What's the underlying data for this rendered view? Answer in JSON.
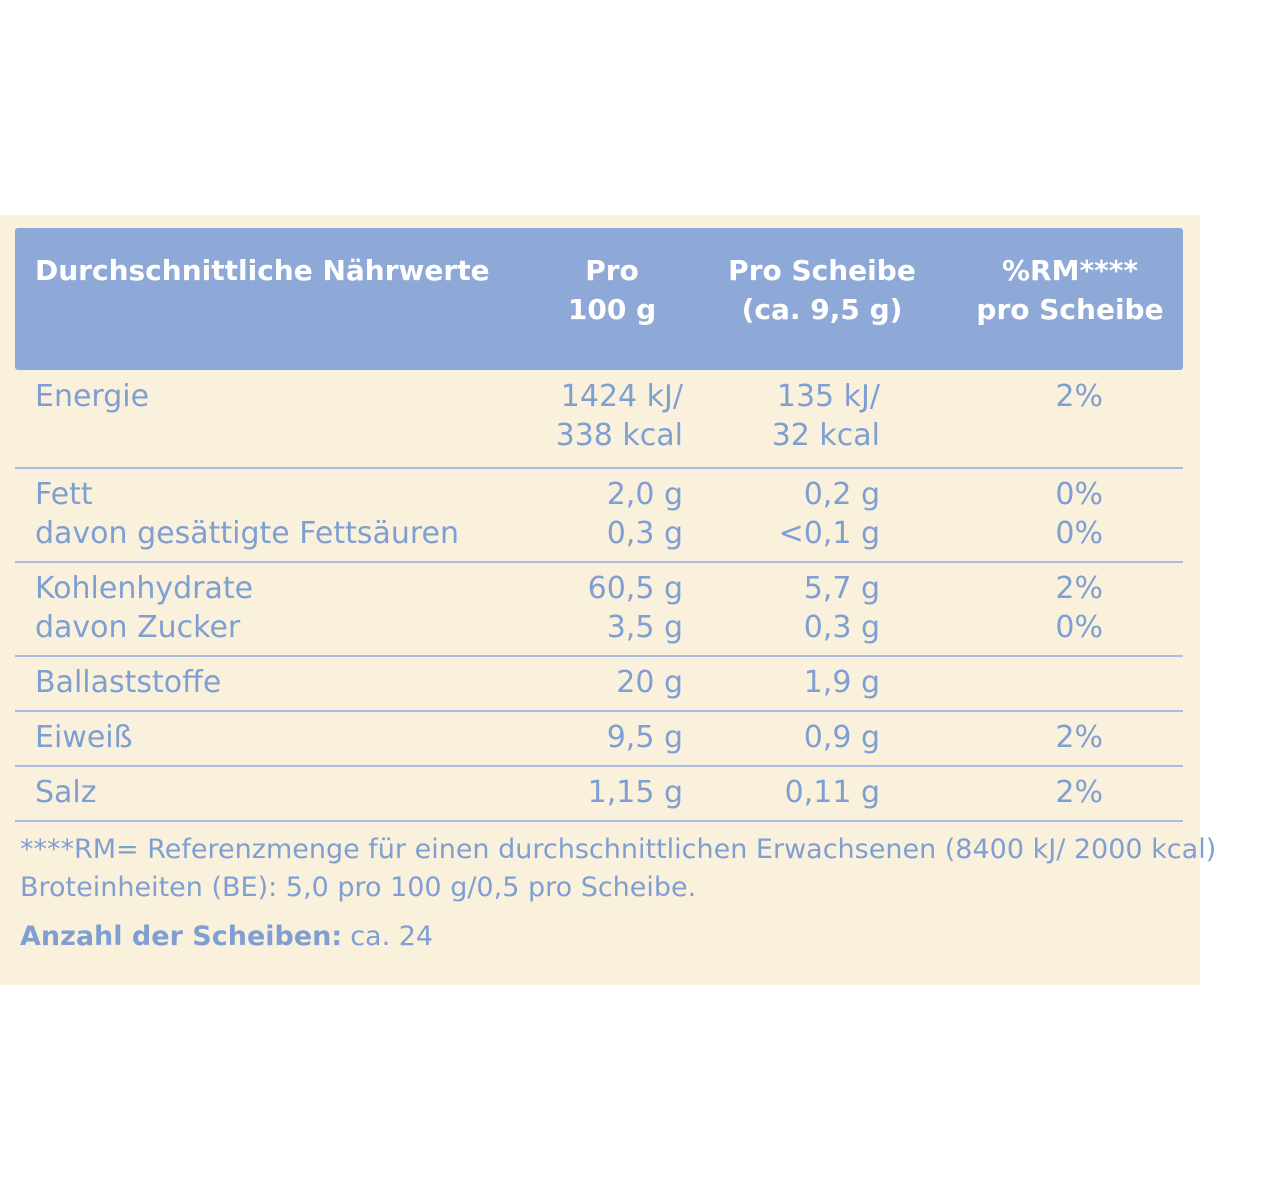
{
  "table": {
    "header": [
      [
        "Durchschnittliche Nährwerte"
      ],
      [
        "Pro",
        "100 g"
      ],
      [
        "Pro Scheibe",
        "(ca. 9,5 g)"
      ],
      [
        "%RM****",
        "pro Scheibe"
      ]
    ],
    "groups": [
      [
        [
          [
            "Energie"
          ],
          [
            "1424 kJ/",
            "338 kcal"
          ],
          [
            "135 kJ/",
            "32 kcal"
          ],
          [
            "2%"
          ]
        ]
      ],
      [
        [
          [
            "Fett"
          ],
          [
            "2,0 g"
          ],
          [
            "0,2 g"
          ],
          [
            "0%"
          ]
        ],
        [
          [
            "davon gesättigte Fettsäuren"
          ],
          [
            "0,3 g"
          ],
          [
            "<0,1 g"
          ],
          [
            "0%"
          ]
        ]
      ],
      [
        [
          [
            "Kohlenhydrate"
          ],
          [
            "60,5 g"
          ],
          [
            "5,7 g"
          ],
          [
            "2%"
          ]
        ],
        [
          [
            "davon Zucker"
          ],
          [
            "3,5 g"
          ],
          [
            "0,3 g"
          ],
          [
            "0%"
          ]
        ]
      ],
      [
        [
          [
            "Ballaststoffe"
          ],
          [
            "20 g"
          ],
          [
            "1,9 g"
          ],
          null
        ]
      ],
      [
        [
          [
            "Eiweiß"
          ],
          [
            "9,5 g"
          ],
          [
            "0,9 g"
          ],
          [
            "2%"
          ]
        ]
      ],
      [
        [
          [
            "Salz"
          ],
          [
            "1,15 g"
          ],
          [
            "0,11 g"
          ],
          [
            "2%"
          ]
        ]
      ]
    ]
  },
  "footer": {
    "lines": [
      "****RM= Referenzmenge für einen durchschnittlichen Erwachsenen (8400 kJ/ 2000 kcal)",
      "Broteinheiten (BE): 5,0 pro 100 g/0,5 pro Scheibe."
    ],
    "slices": {
      "label": "Anzahl der Scheiben:",
      "value": "ca. 24"
    }
  }
}
